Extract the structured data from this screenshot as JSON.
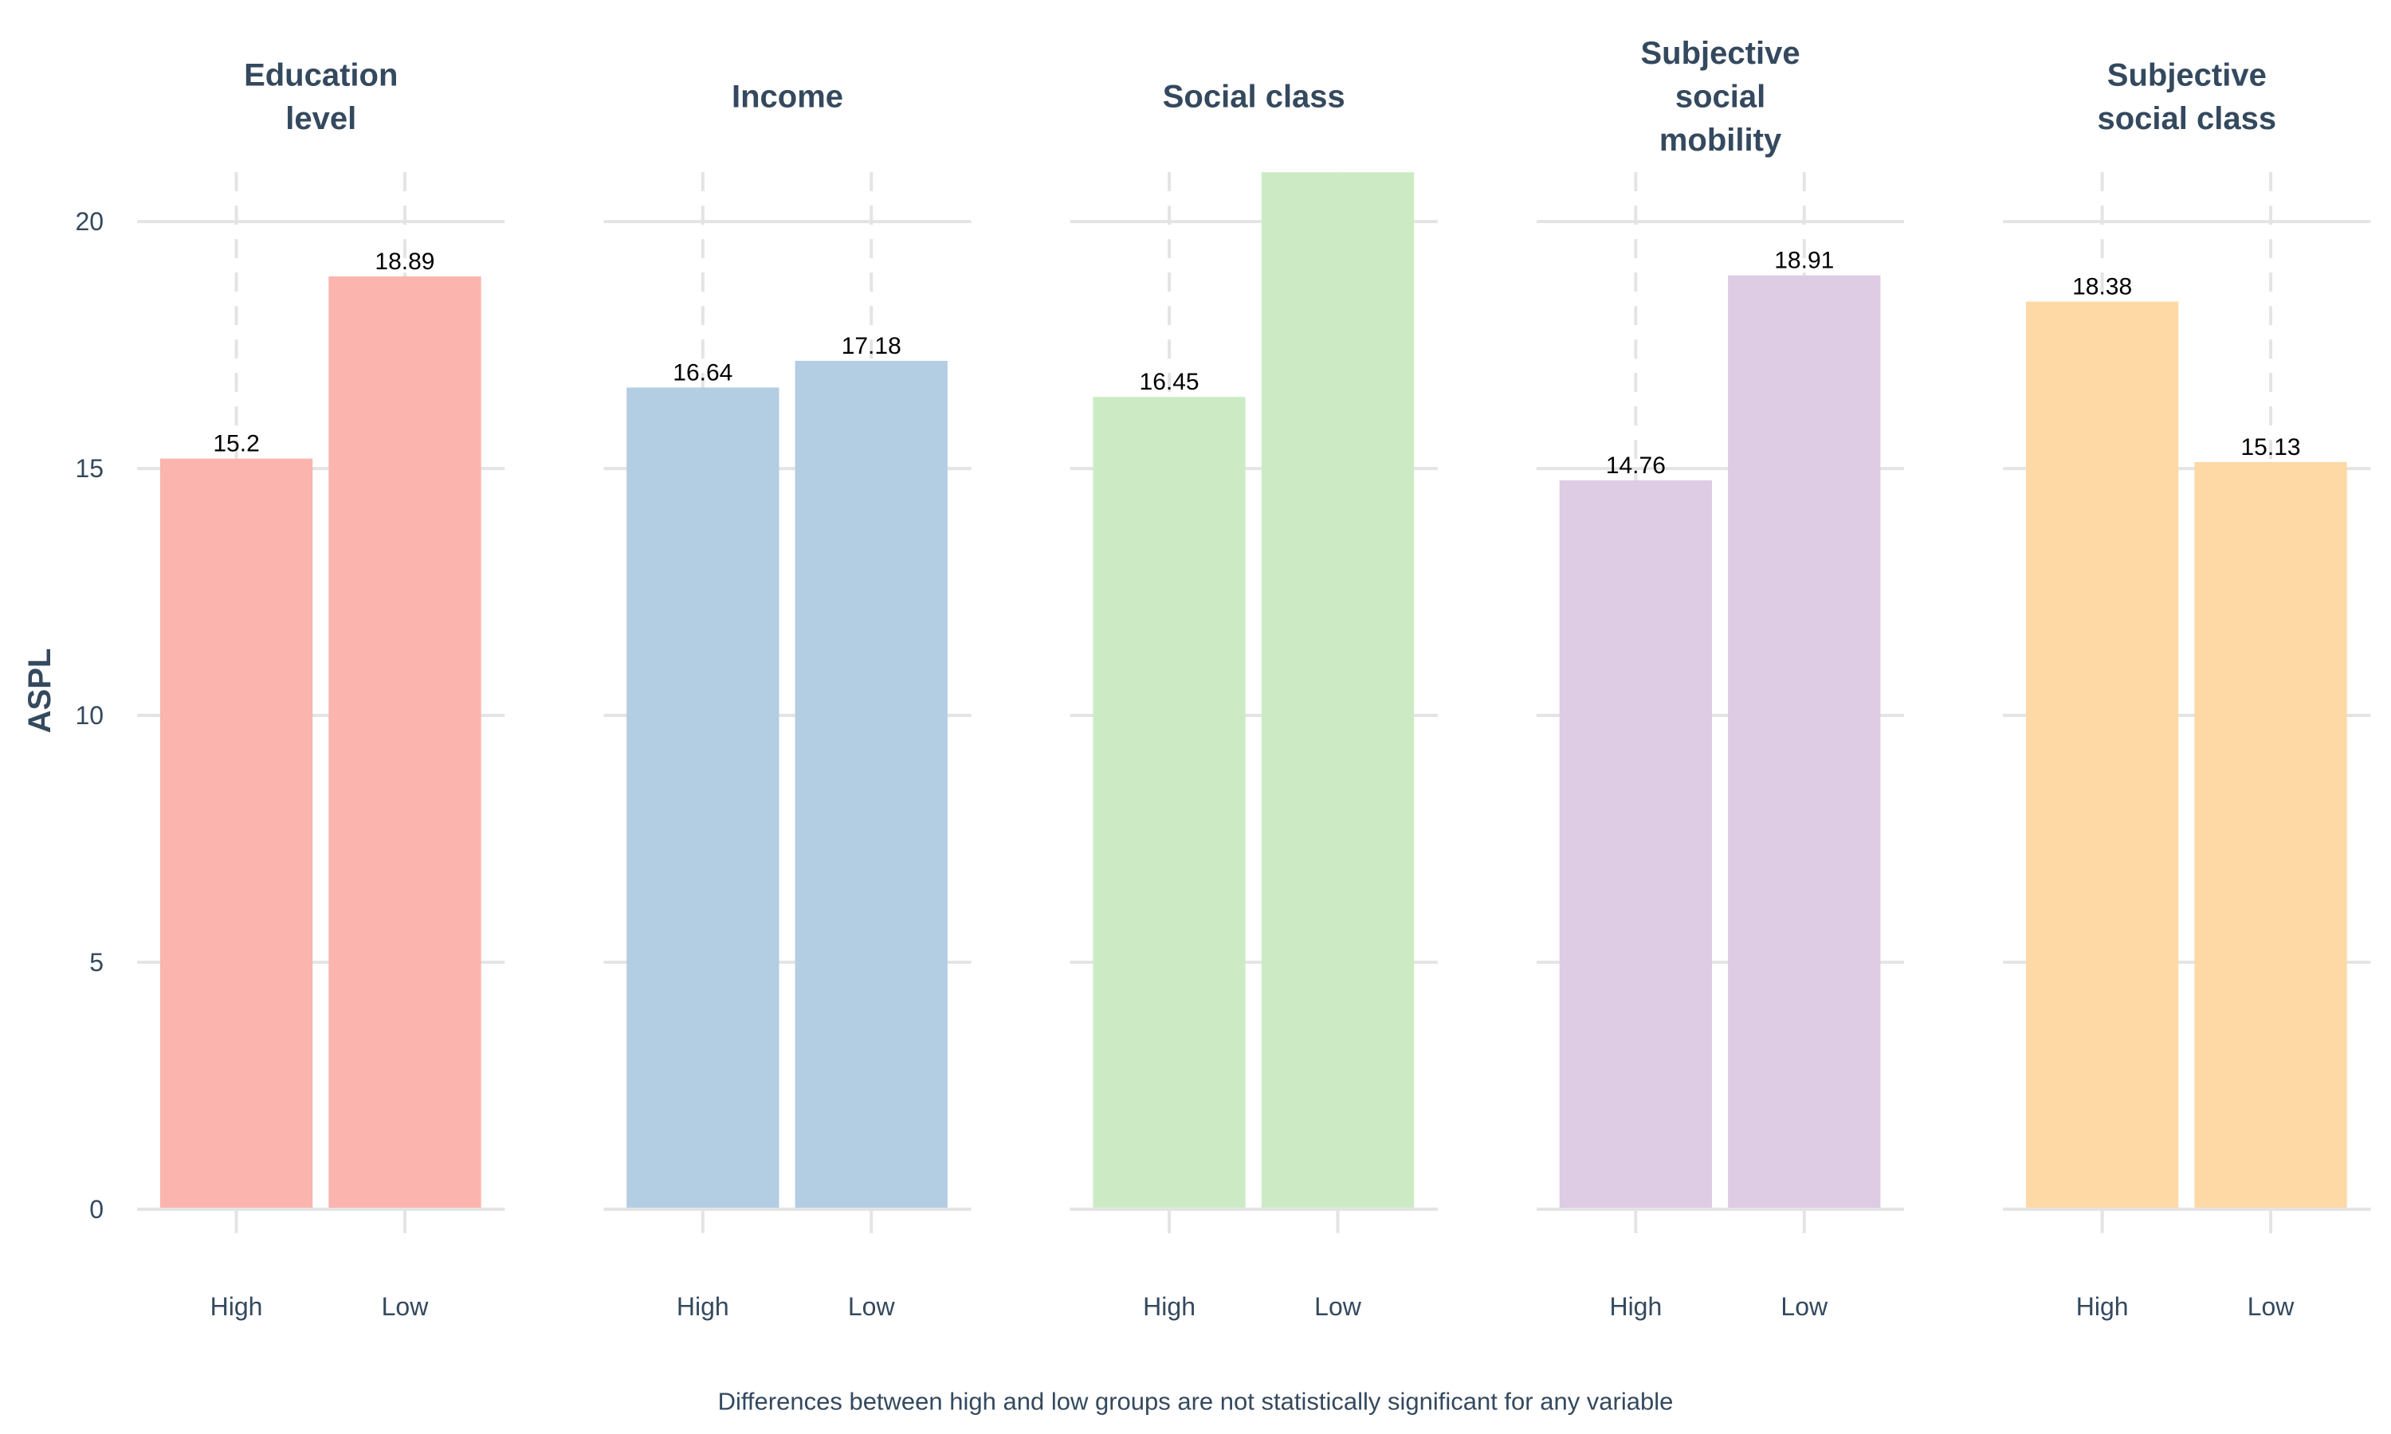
{
  "chart_data": {
    "type": "bar",
    "ylabel": "ASPL",
    "ylim": [
      0,
      21
    ],
    "yticks": [
      0,
      5,
      10,
      15,
      20
    ],
    "categories": [
      "High",
      "Low"
    ],
    "grid": true,
    "caption": "Differences between high and low groups are not statistically significant for any variable",
    "facets": [
      {
        "title": [
          "Education",
          "level"
        ],
        "color": "#fbb4ae",
        "values": [
          15.2,
          18.89
        ],
        "labels": [
          "15.2",
          "18.89"
        ]
      },
      {
        "title": [
          "Income"
        ],
        "color": "#b3cde3",
        "values": [
          16.64,
          17.18
        ],
        "labels": [
          "16.64",
          "17.18"
        ]
      },
      {
        "title": [
          "Social class"
        ],
        "color": "#ccebc5",
        "values": [
          16.45,
          21
        ],
        "labels": [
          "16.45",
          ""
        ]
      },
      {
        "title": [
          "Subjective",
          "social",
          "mobility"
        ],
        "color": "#decbe4",
        "values": [
          14.76,
          18.91
        ],
        "labels": [
          "14.76",
          "18.91"
        ]
      },
      {
        "title": [
          "Subjective",
          "social class"
        ],
        "color": "#fed9a6",
        "values": [
          18.38,
          15.13
        ],
        "labels": [
          "18.38",
          "15.13"
        ]
      }
    ]
  }
}
